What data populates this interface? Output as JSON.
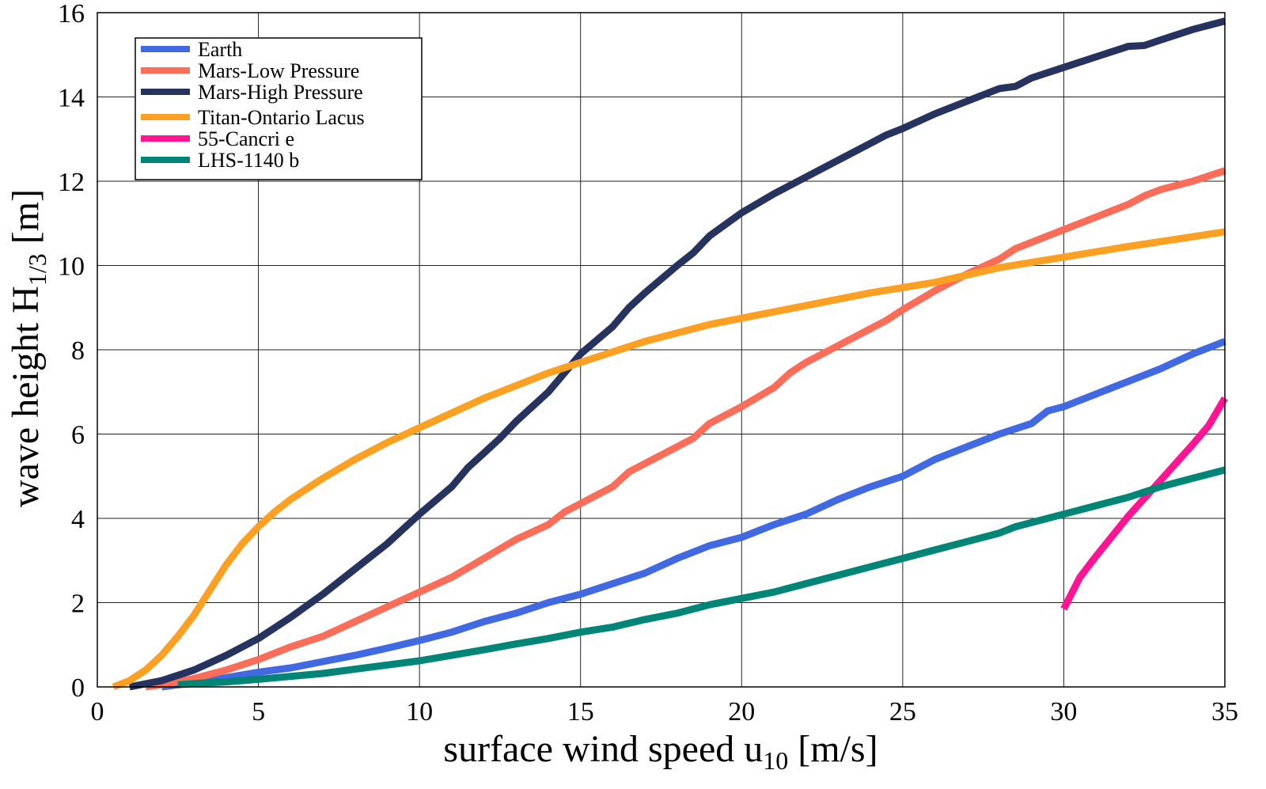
{
  "chart_data": {
    "type": "line",
    "xlabel": "surface wind speed u",
    "xlabel_sub": "10",
    "xlabel_unit": " [m/s]",
    "ylabel": "wave height H",
    "ylabel_sub": "1/3",
    "ylabel_unit": " [m]",
    "xlim": [
      0,
      35
    ],
    "ylim": [
      0,
      16
    ],
    "xticks": [
      0,
      5,
      10,
      15,
      20,
      25,
      30,
      35
    ],
    "yticks": [
      0,
      2,
      4,
      6,
      8,
      10,
      12,
      14,
      16
    ],
    "grid": true,
    "legend_position": "top-left",
    "series": [
      {
        "name": "Earth",
        "color": "#4169e1",
        "x": [
          2,
          2.5,
          3,
          4,
          5,
          6,
          7,
          8,
          9,
          10,
          11,
          12,
          13,
          14,
          15,
          16,
          17,
          18,
          19,
          20,
          21,
          22,
          23,
          24,
          25,
          26,
          27,
          28,
          29,
          29.5,
          30,
          31,
          32,
          33,
          34,
          35
        ],
        "y": [
          0,
          0.05,
          0.1,
          0.22,
          0.35,
          0.45,
          0.6,
          0.75,
          0.92,
          1.1,
          1.3,
          1.55,
          1.75,
          2.0,
          2.2,
          2.45,
          2.7,
          3.05,
          3.35,
          3.55,
          3.85,
          4.1,
          4.45,
          4.75,
          5.0,
          5.4,
          5.7,
          6.0,
          6.25,
          6.55,
          6.65,
          6.95,
          7.25,
          7.55,
          7.9,
          8.2
        ]
      },
      {
        "name": "Mars-Low Pressure",
        "color": "#fa6e59",
        "x": [
          1.5,
          2,
          3,
          4,
          5,
          6,
          7,
          8,
          9,
          10,
          11,
          12,
          13,
          14,
          14.5,
          15,
          16,
          16.5,
          17,
          18,
          18.5,
          19,
          20,
          21,
          21.5,
          22,
          23,
          24,
          24.5,
          25,
          26,
          27,
          28,
          28.5,
          29,
          30,
          31,
          32,
          32.5,
          33,
          34,
          35
        ],
        "y": [
          0,
          0.05,
          0.2,
          0.4,
          0.65,
          0.95,
          1.2,
          1.55,
          1.9,
          2.25,
          2.6,
          3.05,
          3.5,
          3.85,
          4.15,
          4.35,
          4.75,
          5.1,
          5.3,
          5.7,
          5.9,
          6.25,
          6.65,
          7.1,
          7.45,
          7.7,
          8.1,
          8.5,
          8.7,
          8.95,
          9.4,
          9.8,
          10.15,
          10.4,
          10.55,
          10.85,
          11.15,
          11.45,
          11.65,
          11.8,
          12.0,
          12.25
        ]
      },
      {
        "name": "Mars-High Pressure",
        "color": "#26335e",
        "x": [
          1,
          2,
          3,
          4,
          5,
          6,
          7,
          8,
          9,
          10,
          11,
          11.5,
          12,
          12.5,
          13,
          14,
          15,
          16,
          16.5,
          17,
          18,
          18.5,
          19,
          20,
          21,
          22,
          23,
          24,
          24.5,
          25,
          26,
          27,
          28,
          28.5,
          29,
          30,
          31,
          32,
          32.5,
          33,
          34,
          35
        ],
        "y": [
          0,
          0.15,
          0.4,
          0.75,
          1.15,
          1.65,
          2.2,
          2.8,
          3.4,
          4.1,
          4.75,
          5.2,
          5.55,
          5.9,
          6.3,
          7.0,
          7.9,
          8.55,
          9.0,
          9.35,
          10.0,
          10.3,
          10.7,
          11.25,
          11.7,
          12.1,
          12.5,
          12.9,
          13.1,
          13.25,
          13.6,
          13.9,
          14.2,
          14.25,
          14.45,
          14.7,
          14.95,
          15.2,
          15.22,
          15.35,
          15.6,
          15.8
        ]
      },
      {
        "name": "Titan-Ontario Lacus",
        "color": "#fca024",
        "x": [
          0.5,
          1,
          1.5,
          2,
          2.5,
          3,
          3.5,
          4,
          4.5,
          5,
          5.5,
          6,
          7,
          8,
          9,
          10,
          11,
          12,
          13,
          14,
          15,
          16,
          17,
          18,
          19,
          20,
          22,
          24,
          26,
          28,
          30,
          32,
          35
        ],
        "y": [
          0,
          0.15,
          0.4,
          0.75,
          1.2,
          1.7,
          2.3,
          2.9,
          3.4,
          3.8,
          4.15,
          4.45,
          4.95,
          5.4,
          5.8,
          6.15,
          6.5,
          6.85,
          7.15,
          7.45,
          7.7,
          7.95,
          8.2,
          8.4,
          8.6,
          8.75,
          9.05,
          9.35,
          9.6,
          9.95,
          10.2,
          10.45,
          10.8
        ]
      },
      {
        "name": "55-Cancri e",
        "color": "#ff1493",
        "x": [
          30,
          30.5,
          31,
          32,
          33,
          34,
          34.5,
          35
        ],
        "y": [
          1.85,
          2.6,
          3.1,
          4.05,
          4.9,
          5.75,
          6.2,
          6.85
        ]
      },
      {
        "name": "LHS-1140 b",
        "color": "#008577",
        "x": [
          2.5,
          3,
          4,
          5,
          6,
          7,
          8,
          9,
          10,
          11,
          12,
          13,
          14,
          15,
          16,
          17,
          18,
          19,
          20,
          21,
          22,
          23,
          24,
          25,
          26,
          27,
          28,
          28.5,
          30,
          31,
          32,
          33,
          34,
          35
        ],
        "y": [
          0.05,
          0.08,
          0.12,
          0.18,
          0.25,
          0.32,
          0.42,
          0.52,
          0.62,
          0.75,
          0.88,
          1.02,
          1.15,
          1.3,
          1.42,
          1.6,
          1.75,
          1.95,
          2.1,
          2.25,
          2.45,
          2.65,
          2.85,
          3.05,
          3.25,
          3.45,
          3.65,
          3.8,
          4.1,
          4.3,
          4.5,
          4.75,
          4.95,
          5.15
        ]
      }
    ]
  }
}
